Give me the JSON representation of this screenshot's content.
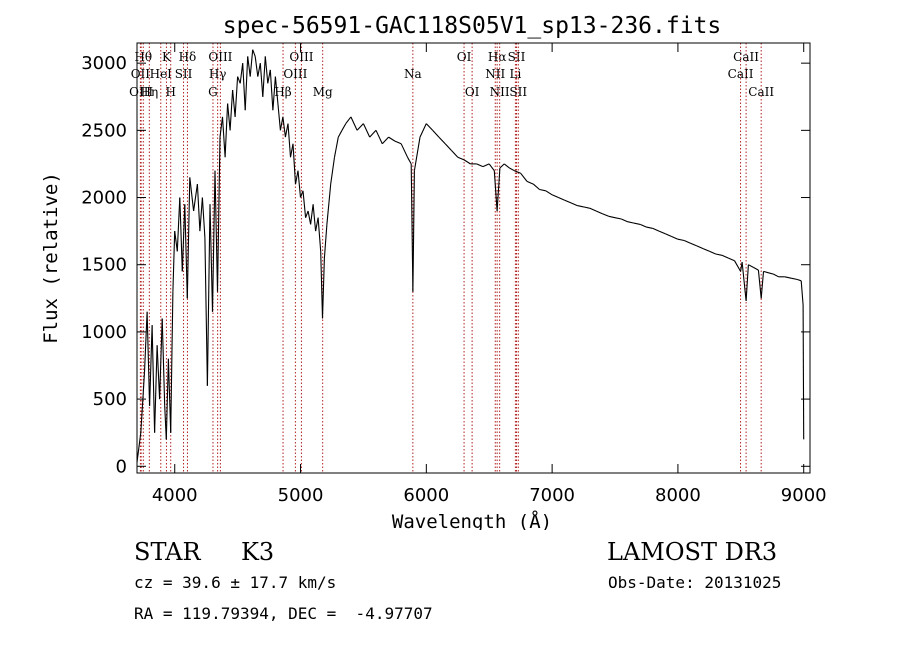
{
  "chart_data": {
    "type": "line",
    "title": "spec-56591-GAC118S05V1_sp13-236.fits",
    "xlabel": "Wavelength (Å)",
    "ylabel": "Flux (relative)",
    "xlim": [
      3700,
      9050
    ],
    "ylim": [
      -50,
      3150
    ],
    "x_ticks": [
      4000,
      5000,
      6000,
      7000,
      8000,
      9000
    ],
    "y_ticks": [
      0,
      500,
      1000,
      1500,
      2000,
      2500,
      3000
    ],
    "x_tick_labels": [
      "4000",
      "5000",
      "6000",
      "7000",
      "8000",
      "9000"
    ],
    "y_tick_labels": [
      "0",
      "500",
      "1000",
      "1500",
      "2000",
      "2500",
      "3000"
    ],
    "line_color": "#000000",
    "marker_color": "#b22222",
    "series": [
      {
        "name": "flux",
        "points": [
          [
            3700,
            30
          ],
          [
            3730,
            250
          ],
          [
            3760,
            700
          ],
          [
            3780,
            1150
          ],
          [
            3800,
            450
          ],
          [
            3820,
            1050
          ],
          [
            3840,
            250
          ],
          [
            3860,
            900
          ],
          [
            3880,
            500
          ],
          [
            3900,
            1100
          ],
          [
            3920,
            450
          ],
          [
            3933,
            200
          ],
          [
            3950,
            800
          ],
          [
            3968,
            250
          ],
          [
            3985,
            1300
          ],
          [
            4000,
            1750
          ],
          [
            4020,
            1600
          ],
          [
            4040,
            2000
          ],
          [
            4060,
            1450
          ],
          [
            4080,
            1950
          ],
          [
            4100,
            1250
          ],
          [
            4120,
            2150
          ],
          [
            4150,
            1900
          ],
          [
            4180,
            2100
          ],
          [
            4200,
            1750
          ],
          [
            4220,
            2000
          ],
          [
            4240,
            1700
          ],
          [
            4260,
            600
          ],
          [
            4280,
            1950
          ],
          [
            4300,
            1150
          ],
          [
            4320,
            2200
          ],
          [
            4340,
            1300
          ],
          [
            4360,
            2450
          ],
          [
            4380,
            2600
          ],
          [
            4400,
            2300
          ],
          [
            4420,
            2700
          ],
          [
            4440,
            2500
          ],
          [
            4460,
            2800
          ],
          [
            4480,
            2600
          ],
          [
            4500,
            2900
          ],
          [
            4520,
            2850
          ],
          [
            4540,
            3000
          ],
          [
            4560,
            2650
          ],
          [
            4580,
            3050
          ],
          [
            4600,
            2900
          ],
          [
            4620,
            3100
          ],
          [
            4640,
            3050
          ],
          [
            4660,
            2900
          ],
          [
            4680,
            3000
          ],
          [
            4700,
            2750
          ],
          [
            4720,
            3050
          ],
          [
            4740,
            2850
          ],
          [
            4760,
            2950
          ],
          [
            4780,
            2650
          ],
          [
            4800,
            2900
          ],
          [
            4820,
            2700
          ],
          [
            4840,
            2500
          ],
          [
            4860,
            2600
          ],
          [
            4880,
            2450
          ],
          [
            4900,
            2550
          ],
          [
            4920,
            2300
          ],
          [
            4940,
            2400
          ],
          [
            4960,
            2100
          ],
          [
            4980,
            2200
          ],
          [
            5000,
            2000
          ],
          [
            5020,
            2050
          ],
          [
            5040,
            1850
          ],
          [
            5060,
            1900
          ],
          [
            5080,
            1800
          ],
          [
            5100,
            1950
          ],
          [
            5120,
            1750
          ],
          [
            5140,
            1850
          ],
          [
            5160,
            1600
          ],
          [
            5175,
            1100
          ],
          [
            5190,
            1550
          ],
          [
            5210,
            1800
          ],
          [
            5240,
            2100
          ],
          [
            5270,
            2300
          ],
          [
            5300,
            2450
          ],
          [
            5330,
            2500
          ],
          [
            5360,
            2550
          ],
          [
            5400,
            2600
          ],
          [
            5450,
            2500
          ],
          [
            5500,
            2550
          ],
          [
            5550,
            2450
          ],
          [
            5600,
            2500
          ],
          [
            5650,
            2400
          ],
          [
            5700,
            2450
          ],
          [
            5750,
            2420
          ],
          [
            5800,
            2400
          ],
          [
            5850,
            2300
          ],
          [
            5880,
            2250
          ],
          [
            5893,
            1300
          ],
          [
            5905,
            2200
          ],
          [
            5950,
            2450
          ],
          [
            6000,
            2550
          ],
          [
            6050,
            2500
          ],
          [
            6100,
            2450
          ],
          [
            6150,
            2400
          ],
          [
            6200,
            2350
          ],
          [
            6250,
            2300
          ],
          [
            6300,
            2280
          ],
          [
            6350,
            2250
          ],
          [
            6400,
            2250
          ],
          [
            6450,
            2230
          ],
          [
            6500,
            2250
          ],
          [
            6540,
            2200
          ],
          [
            6563,
            1900
          ],
          [
            6585,
            2220
          ],
          [
            6620,
            2250
          ],
          [
            6660,
            2220
          ],
          [
            6700,
            2200
          ],
          [
            6750,
            2180
          ],
          [
            6800,
            2120
          ],
          [
            6850,
            2100
          ],
          [
            6900,
            2060
          ],
          [
            6950,
            2050
          ],
          [
            7000,
            2020
          ],
          [
            7050,
            2000
          ],
          [
            7100,
            1980
          ],
          [
            7150,
            1960
          ],
          [
            7200,
            1940
          ],
          [
            7250,
            1930
          ],
          [
            7300,
            1920
          ],
          [
            7350,
            1900
          ],
          [
            7400,
            1880
          ],
          [
            7450,
            1860
          ],
          [
            7500,
            1850
          ],
          [
            7550,
            1840
          ],
          [
            7600,
            1820
          ],
          [
            7650,
            1810
          ],
          [
            7700,
            1800
          ],
          [
            7750,
            1780
          ],
          [
            7800,
            1770
          ],
          [
            7850,
            1750
          ],
          [
            7900,
            1730
          ],
          [
            7950,
            1710
          ],
          [
            8000,
            1690
          ],
          [
            8050,
            1680
          ],
          [
            8100,
            1660
          ],
          [
            8150,
            1640
          ],
          [
            8200,
            1620
          ],
          [
            8250,
            1600
          ],
          [
            8300,
            1580
          ],
          [
            8350,
            1570
          ],
          [
            8400,
            1550
          ],
          [
            8450,
            1530
          ],
          [
            8498,
            1450
          ],
          [
            8510,
            1520
          ],
          [
            8542,
            1230
          ],
          [
            8560,
            1500
          ],
          [
            8600,
            1480
          ],
          [
            8640,
            1460
          ],
          [
            8662,
            1250
          ],
          [
            8680,
            1450
          ],
          [
            8720,
            1440
          ],
          [
            8760,
            1430
          ],
          [
            8800,
            1410
          ],
          [
            8850,
            1410
          ],
          [
            8900,
            1400
          ],
          [
            8950,
            1390
          ],
          [
            8980,
            1380
          ],
          [
            8995,
            1200
          ],
          [
            9000,
            200
          ]
        ]
      }
    ],
    "line_markers": [
      {
        "wavelength": 3750,
        "label": "Hθ",
        "row": 0
      },
      {
        "wavelength": 3727,
        "label": "OII",
        "row": 1
      },
      {
        "wavelength": 3733,
        "label": "OIII",
        "row": 2
      },
      {
        "wavelength": 3798,
        "label": "Hη",
        "row": 2
      },
      {
        "wavelength": 3889,
        "label": "HeI",
        "row": 1
      },
      {
        "wavelength": 3934,
        "label": "K",
        "row": 0
      },
      {
        "wavelength": 3968,
        "label": "H",
        "row": 2
      },
      {
        "wavelength": 4070,
        "label": "SII",
        "row": 1
      },
      {
        "wavelength": 4101,
        "label": "Hδ",
        "row": 0
      },
      {
        "wavelength": 4304,
        "label": "G",
        "row": 2
      },
      {
        "wavelength": 4341,
        "label": "Hγ",
        "row": 1
      },
      {
        "wavelength": 4363,
        "label": "OIII",
        "row": 0
      },
      {
        "wavelength": 4861,
        "label": "Hβ",
        "row": 2
      },
      {
        "wavelength": 4959,
        "label": "OIII",
        "row": 1
      },
      {
        "wavelength": 5007,
        "label": "OIII",
        "row": 0
      },
      {
        "wavelength": 5176,
        "label": "Mg",
        "row": 2
      },
      {
        "wavelength": 5893,
        "label": "Na",
        "row": 1
      },
      {
        "wavelength": 6300,
        "label": "OI",
        "row": 0
      },
      {
        "wavelength": 6364,
        "label": "OI",
        "row": 2
      },
      {
        "wavelength": 6548,
        "label": "NII",
        "row": 1
      },
      {
        "wavelength": 6563,
        "label": "Hα",
        "row": 0
      },
      {
        "wavelength": 6583,
        "label": "NII",
        "row": 2
      },
      {
        "wavelength": 6708,
        "label": "Li",
        "row": 1
      },
      {
        "wavelength": 6717,
        "label": "SII",
        "row": 0
      },
      {
        "wavelength": 6731,
        "label": "SII",
        "row": 2
      },
      {
        "wavelength": 8498,
        "label": "CaII",
        "row": 1
      },
      {
        "wavelength": 8542,
        "label": "CaII",
        "row": 0
      },
      {
        "wavelength": 8662,
        "label": "CaII",
        "row": 2
      }
    ]
  },
  "info": {
    "object_class": "STAR",
    "subclass": "K3",
    "survey": "LAMOST DR3",
    "redshift": "cz = 39.6 ± 17.7 km/s",
    "obs_date": "Obs-Date: 20131025",
    "coordinates": "RA = 119.79394, DEC =  -4.97707"
  }
}
